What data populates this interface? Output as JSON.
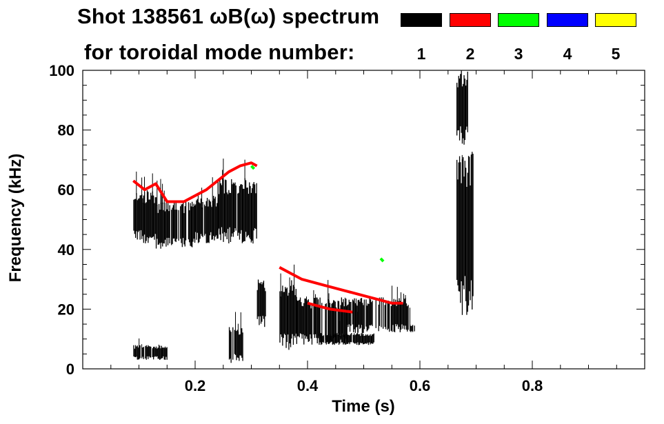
{
  "title_line1": "Shot 138561 ωB(ω) spectrum",
  "title_line2": "for toroidal mode number:",
  "legend": [
    {
      "label": "1",
      "color": "#000000"
    },
    {
      "label": "2",
      "color": "#ff0000"
    },
    {
      "label": "3",
      "color": "#00ff00"
    },
    {
      "label": "4",
      "color": "#0000ff"
    },
    {
      "label": "5",
      "color": "#ffff00"
    }
  ],
  "chart_data": {
    "type": "spectrogram",
    "title": "Shot 138561 ωB(ω) spectrum for toroidal mode number:",
    "xlabel": "Time (s)",
    "ylabel": "Frequency (kHz)",
    "xlim": [
      0.0,
      1.0
    ],
    "ylim": [
      0,
      100
    ],
    "xticks": [
      {
        "value": 0.2,
        "label": "0.2"
      },
      {
        "value": 0.4,
        "label": "0.4"
      },
      {
        "value": 0.6,
        "label": "0.6"
      },
      {
        "value": 0.8,
        "label": "0.8"
      }
    ],
    "yticks": [
      {
        "value": 0,
        "label": "0"
      },
      {
        "value": 20,
        "label": "20"
      },
      {
        "value": 40,
        "label": "40"
      },
      {
        "value": 60,
        "label": "60"
      },
      {
        "value": 80,
        "label": "80"
      },
      {
        "value": 100,
        "label": "100"
      }
    ],
    "series": [
      {
        "name": "n=1",
        "color": "#000000",
        "regions": [
          {
            "t": [
              0.09,
              0.13
            ],
            "f": [
              42,
              60
            ]
          },
          {
            "t": [
              0.13,
              0.2
            ],
            "f": [
              40,
              56
            ]
          },
          {
            "t": [
              0.2,
              0.24
            ],
            "f": [
              42,
              58
            ]
          },
          {
            "t": [
              0.24,
              0.31
            ],
            "f": [
              42,
              64
            ]
          },
          {
            "t": [
              0.09,
              0.15
            ],
            "f": [
              3,
              8
            ]
          },
          {
            "t": [
              0.26,
              0.285
            ],
            "f": [
              2,
              14
            ]
          },
          {
            "t": [
              0.31,
              0.325
            ],
            "f": [
              14,
              30
            ]
          },
          {
            "t": [
              0.35,
              0.38
            ],
            "f": [
              6,
              30
            ]
          },
          {
            "t": [
              0.38,
              0.47
            ],
            "f": [
              8,
              24
            ]
          },
          {
            "t": [
              0.42,
              0.52
            ],
            "f": [
              8,
              12
            ]
          },
          {
            "t": [
              0.47,
              0.58
            ],
            "f": [
              12,
              24
            ]
          },
          {
            "t": [
              0.58,
              0.59
            ],
            "f": [
              12,
              15
            ]
          },
          {
            "t": [
              0.665,
              0.685
            ],
            "f": [
              75,
              100
            ]
          },
          {
            "t": [
              0.665,
              0.695
            ],
            "f": [
              18,
              75
            ]
          }
        ]
      },
      {
        "name": "n=2",
        "color": "#ff0000",
        "lines": [
          {
            "t": [
              0.09,
              0.11,
              0.13,
              0.15,
              0.18,
              0.22,
              0.24,
              0.26,
              0.28,
              0.3,
              0.31
            ],
            "f": [
              63,
              60,
              62,
              56,
              56,
              60,
              63,
              66,
              68,
              69,
              68
            ]
          },
          {
            "t": [
              0.35,
              0.39,
              0.43,
              0.47,
              0.51,
              0.55,
              0.57
            ],
            "f": [
              34,
              30,
              28,
              26,
              24,
              22,
              22
            ]
          },
          {
            "t": [
              0.4,
              0.44,
              0.48
            ],
            "f": [
              22,
              20,
              19
            ]
          }
        ]
      },
      {
        "name": "n=3",
        "color": "#00ff00",
        "lines": [
          {
            "t": [
              0.3,
              0.305
            ],
            "f": [
              68,
              67
            ]
          },
          {
            "t": [
              0.53,
              0.535
            ],
            "f": [
              37,
              36
            ]
          }
        ]
      },
      {
        "name": "n=4",
        "color": "#0000ff",
        "lines": []
      },
      {
        "name": "n=5",
        "color": "#ffff00",
        "lines": []
      }
    ]
  }
}
